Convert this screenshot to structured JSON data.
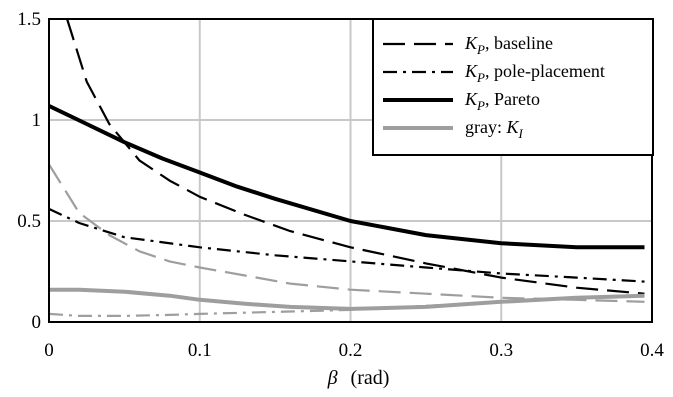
{
  "chart_data": {
    "type": "line",
    "title": "",
    "xlabel": "β",
    "xlabel_unit": "(rad)",
    "ylabel": "",
    "xlim": [
      0,
      0.4
    ],
    "ylim": [
      0,
      1.5
    ],
    "x_ticks": [
      "0",
      "0.1",
      "0.2",
      "0.3",
      "0.4"
    ],
    "y_ticks": [
      "0",
      "0.5",
      "1",
      "1.5"
    ],
    "grid": true,
    "legend_position": "top-right",
    "legend": [
      {
        "label_main": "K",
        "label_sub": "P",
        "label_rest": ", baseline",
        "style": "long-dash",
        "color": "#000000"
      },
      {
        "label_main": "K",
        "label_sub": "P",
        "label_rest": ", pole-placement",
        "style": "dash-dot",
        "color": "#000000"
      },
      {
        "label_main": "K",
        "label_sub": "P",
        "label_rest": ", Pareto",
        "style": "solid-thick",
        "color": "#000000"
      },
      {
        "label_prefix": "gray: ",
        "label_main": "K",
        "label_sub": "I",
        "label_rest": "",
        "style": "solid-thick",
        "color": "#9e9e9e"
      }
    ],
    "series": [
      {
        "name": "K_P, baseline",
        "color": "#000000",
        "dash": "long-dash",
        "width": 2.2,
        "x": [
          0.012,
          0.025,
          0.04,
          0.06,
          0.08,
          0.1,
          0.13,
          0.16,
          0.2,
          0.25,
          0.3,
          0.35,
          0.395
        ],
        "y": [
          1.5,
          1.19,
          0.98,
          0.8,
          0.7,
          0.62,
          0.53,
          0.45,
          0.37,
          0.29,
          0.22,
          0.17,
          0.14
        ]
      },
      {
        "name": "K_P, pole-placement",
        "color": "#000000",
        "dash": "dash-dot",
        "width": 2.2,
        "x": [
          0.0,
          0.02,
          0.05,
          0.1,
          0.15,
          0.2,
          0.25,
          0.3,
          0.35,
          0.395
        ],
        "y": [
          0.56,
          0.49,
          0.42,
          0.37,
          0.33,
          0.3,
          0.27,
          0.24,
          0.22,
          0.2
        ]
      },
      {
        "name": "K_P, Pareto",
        "color": "#000000",
        "dash": "solid",
        "width": 4,
        "x": [
          0.0,
          0.025,
          0.05,
          0.075,
          0.1,
          0.125,
          0.15,
          0.2,
          0.25,
          0.3,
          0.35,
          0.395
        ],
        "y": [
          1.07,
          0.98,
          0.89,
          0.81,
          0.74,
          0.67,
          0.61,
          0.5,
          0.43,
          0.39,
          0.37,
          0.37
        ]
      },
      {
        "name": "K_I, baseline",
        "color": "#9e9e9e",
        "dash": "long-dash",
        "width": 2.2,
        "x": [
          0.0,
          0.02,
          0.04,
          0.06,
          0.08,
          0.1,
          0.13,
          0.16,
          0.2,
          0.25,
          0.3,
          0.35,
          0.395
        ],
        "y": [
          0.78,
          0.54,
          0.43,
          0.35,
          0.3,
          0.27,
          0.23,
          0.19,
          0.16,
          0.14,
          0.12,
          0.11,
          0.1
        ]
      },
      {
        "name": "K_I, pole-placement",
        "color": "#9e9e9e",
        "dash": "dash-dot",
        "width": 2.2,
        "x": [
          0.0,
          0.02,
          0.05,
          0.08,
          0.1,
          0.15,
          0.2,
          0.25,
          0.3,
          0.35,
          0.395
        ],
        "y": [
          0.04,
          0.03,
          0.03,
          0.035,
          0.04,
          0.05,
          0.06,
          0.08,
          0.1,
          0.12,
          0.13
        ]
      },
      {
        "name": "K_I, Pareto",
        "color": "#9e9e9e",
        "dash": "solid",
        "width": 4,
        "x": [
          0.0,
          0.02,
          0.05,
          0.08,
          0.1,
          0.13,
          0.16,
          0.2,
          0.25,
          0.3,
          0.35,
          0.395
        ],
        "y": [
          0.16,
          0.16,
          0.15,
          0.13,
          0.11,
          0.09,
          0.075,
          0.065,
          0.075,
          0.1,
          0.12,
          0.13
        ]
      }
    ]
  }
}
